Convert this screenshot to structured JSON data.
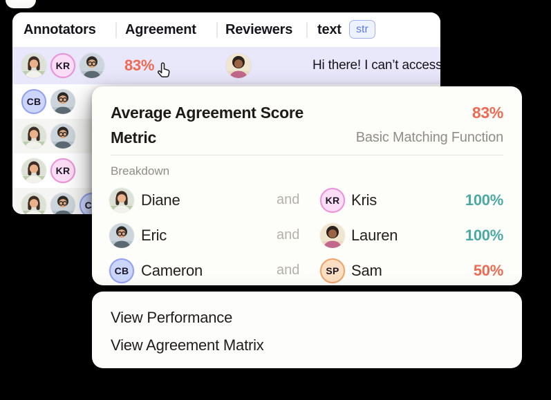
{
  "table": {
    "columns": [
      {
        "label": "Annotators"
      },
      {
        "label": "Agreement"
      },
      {
        "label": "Reviewers"
      },
      {
        "label": "text",
        "badge": "str"
      }
    ],
    "rows": [
      {
        "annotators": [
          "diane",
          "kris",
          "eric"
        ],
        "agreement": "83%",
        "reviewers": [
          "lauren"
        ],
        "text": "Hi there! I can’t access spre"
      },
      {
        "annotators": [
          "cameron",
          "eric"
        ]
      },
      {
        "annotators": [
          "diane",
          "eric"
        ]
      },
      {
        "annotators": [
          "diane",
          "kris"
        ]
      },
      {
        "annotators": [
          "diane",
          "eric",
          "cameron"
        ]
      }
    ]
  },
  "people": {
    "diane": {
      "name": "Diane",
      "kind": "photo",
      "bg": "#dde2d6",
      "bg2": "#9fbd8a",
      "hair": "#3e2d26",
      "skin": "#eab28a",
      "shirt": "#f3f1ec",
      "variant": "long"
    },
    "eric": {
      "name": "Eric",
      "kind": "photo",
      "bg": "#ccd5db",
      "bg2": "#aab8c2",
      "hair": "#2c2824",
      "skin": "#e0a87e",
      "shirt": "#5d6a74",
      "variant": "glasses"
    },
    "lauren": {
      "name": "Lauren",
      "kind": "photo",
      "bg": "#f0e5cf",
      "bg2": "#e6d6b8",
      "hair": "#2b211d",
      "skin": "#9a6442",
      "shirt": "#c2688c",
      "variant": "curly"
    },
    "kris": {
      "name": "Kris",
      "kind": "badge",
      "initials": "KR",
      "bg": "#fbdef5",
      "ring": "#ee8fd9"
    },
    "cameron": {
      "name": "Cameron",
      "kind": "badge",
      "initials": "CB",
      "bg": "#ccd6fb",
      "ring": "#8fa0f2"
    },
    "sam": {
      "name": "Sam",
      "kind": "badge",
      "initials": "SP",
      "bg": "#fcdfc2",
      "ring": "#efa368"
    }
  },
  "popup": {
    "title": "Average Agreement Score",
    "score": "83%",
    "metric_label": "Metric",
    "metric_value": "Basic Matching Function",
    "breakdown_label": "Breakdown",
    "and_label": "and",
    "breakdown": [
      {
        "a": "diane",
        "b": "kris",
        "value": "100%",
        "color": "#4aaaa2"
      },
      {
        "a": "eric",
        "b": "lauren",
        "value": "100%",
        "color": "#4aaaa2"
      },
      {
        "a": "cameron",
        "b": "sam",
        "value": "50%",
        "color": "#ee6a52"
      }
    ]
  },
  "menu": {
    "items": [
      "View Performance",
      "View Agreement Matrix"
    ]
  },
  "icons": {
    "cursor": "cursor-pointer-icon"
  },
  "colors": {
    "background": "#000000",
    "accent_coral": "#ee6a52",
    "teal": "#4aaaa2",
    "row_highlight": "#e9e7fa",
    "row_stripe": "#f5f5f3",
    "str_badge_text": "#5b79ea"
  }
}
